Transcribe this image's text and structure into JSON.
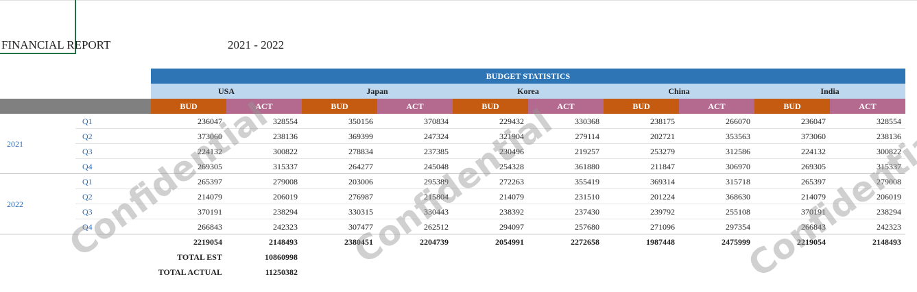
{
  "title": "FINANCIAL REPORT",
  "period": "2021 - 2022",
  "table": {
    "banner": "BUDGET STATISTICS",
    "regions": [
      "USA",
      "Japan",
      "Korea",
      "China",
      "India"
    ],
    "subheaders": [
      "BUD",
      "ACT"
    ],
    "groups": [
      {
        "year": "2021",
        "rows": [
          {
            "quarter": "Q1",
            "values": [
              236047,
              328554,
              350156,
              370834,
              229432,
              330368,
              238175,
              266070,
              236047,
              328554
            ]
          },
          {
            "quarter": "Q2",
            "values": [
              373060,
              238136,
              369399,
              247324,
              321904,
              279114,
              202721,
              353563,
              373060,
              238136
            ]
          },
          {
            "quarter": "Q3",
            "values": [
              224132,
              300822,
              278834,
              237385,
              230496,
              219257,
              253279,
              312586,
              224132,
              300822
            ]
          },
          {
            "quarter": "Q4",
            "values": [
              269305,
              315337,
              264277,
              245048,
              254328,
              361880,
              211847,
              306970,
              269305,
              315337
            ]
          }
        ]
      },
      {
        "year": "2022",
        "rows": [
          {
            "quarter": "Q1",
            "values": [
              265397,
              279008,
              203006,
              295389,
              272263,
              355419,
              369314,
              315718,
              265397,
              279008
            ]
          },
          {
            "quarter": "Q2",
            "values": [
              214079,
              206019,
              276987,
              215804,
              214079,
              231510,
              201224,
              368630,
              214079,
              206019
            ]
          },
          {
            "quarter": "Q3",
            "values": [
              370191,
              238294,
              330315,
              330443,
              238392,
              237430,
              239792,
              255108,
              370191,
              238294
            ]
          },
          {
            "quarter": "Q4",
            "values": [
              266843,
              242323,
              307477,
              262512,
              294097,
              257680,
              271096,
              297354,
              266843,
              242323
            ]
          }
        ]
      }
    ],
    "totals": [
      2219054,
      2148493,
      2380451,
      2204739,
      2054991,
      2272658,
      1987448,
      2475999,
      2219054,
      2148493
    ],
    "total_est": {
      "label": "TOTAL EST",
      "value": 10860998
    },
    "total_actual": {
      "label": "TOTAL ACTUAL",
      "value": 11250382
    }
  },
  "watermark": "Confidential"
}
